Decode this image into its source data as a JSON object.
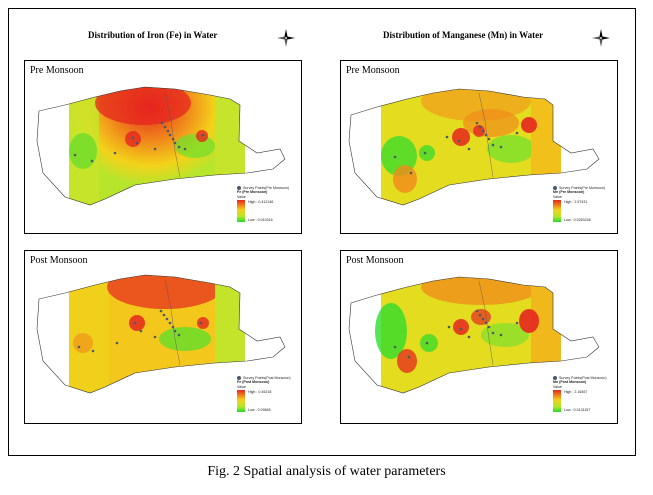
{
  "figure": {
    "caption": "Fig. 2 Spatial analysis of water parameters"
  },
  "maps": [
    {
      "title": "Distribution of Iron (Fe) in Water",
      "panels": [
        {
          "label": "Pre Monsoon",
          "legend": {
            "points_label": "Survey Points(Pre Monsoon)",
            "layer_label": "Fe (Pre Monsoon)",
            "value_label": "Value",
            "high_label": "High : 0.412146",
            "low_label": "Low : 0.010316"
          }
        },
        {
          "label": "Post Monsoon",
          "legend": {
            "points_label": "Survey Points(Post Monsoon)",
            "layer_label": "Fe (Post Monsoon)",
            "value_label": "Value",
            "high_label": "High : 0.45218",
            "low_label": "Low : 0.09845"
          }
        }
      ]
    },
    {
      "title": "Distribution of Manganese (Mn) in Water",
      "panels": [
        {
          "label": "Pre Monsoon",
          "legend": {
            "points_label": "Survey Points(Pre Monsoon)",
            "layer_label": "Mn (Pre Monsoon)",
            "value_label": "Value",
            "high_label": "High : 2.57431",
            "low_label": "Low : 0.0263248"
          }
        },
        {
          "label": "Post Monsoon",
          "legend": {
            "points_label": "Survey Points(Post Monsoon)",
            "layer_label": "Mn (Post Monsoon)",
            "value_label": "Value",
            "high_label": "High : 2.16457",
            "low_label": "Low : 0.0131157"
          }
        }
      ]
    }
  ],
  "colors": {
    "high": "#e6261f",
    "mid": "#f3d21a",
    "low": "#20dc2a",
    "survey_point": "#4a5a6a"
  },
  "icons": {
    "north_arrow": "compass-icon"
  }
}
